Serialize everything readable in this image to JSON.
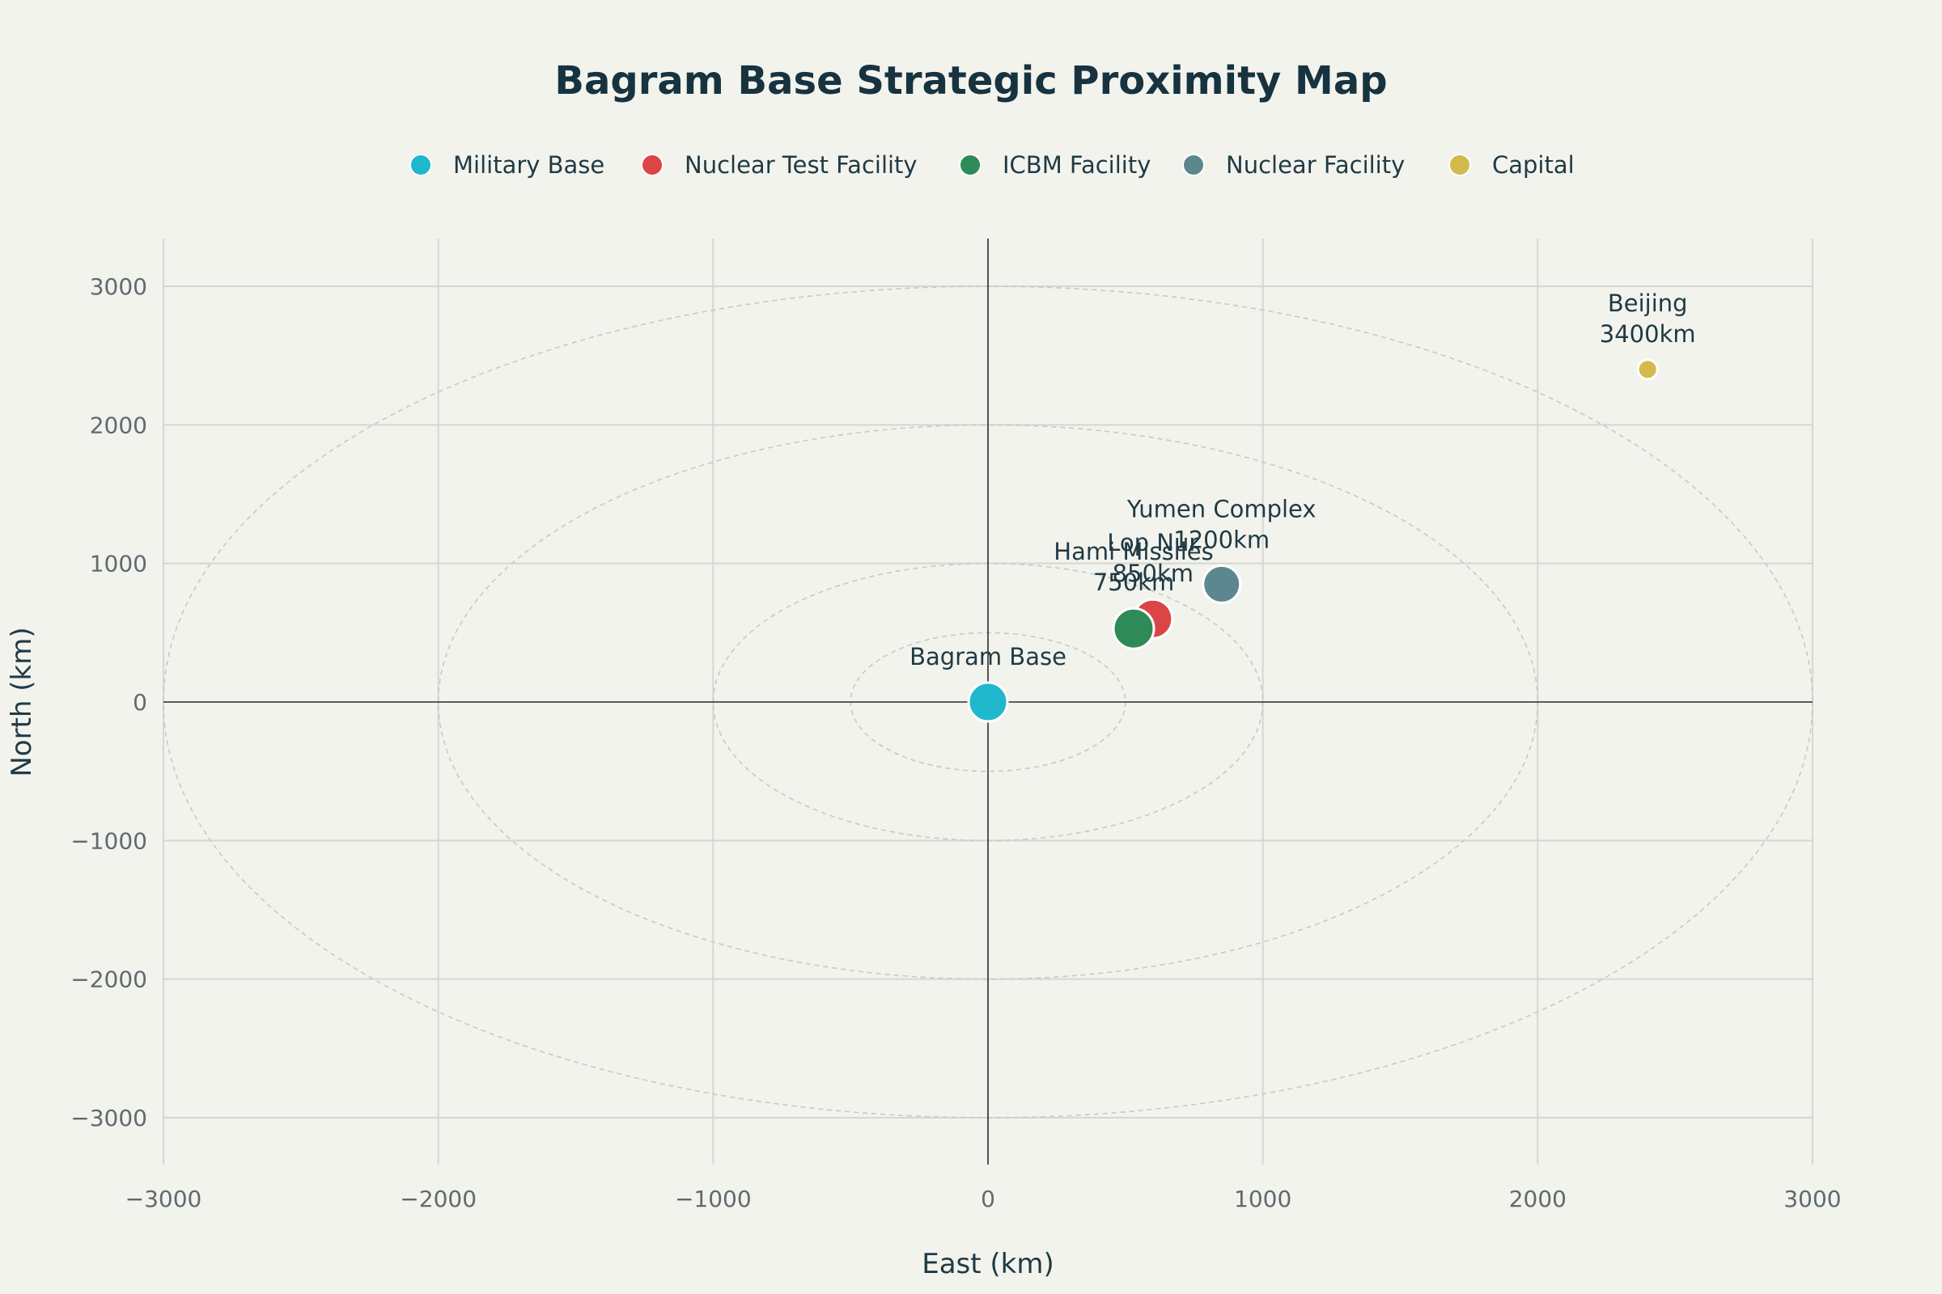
{
  "chart_data": {
    "type": "scatter",
    "title": "Bagram Base Strategic Proximity Map",
    "xlabel": "East (km)",
    "ylabel": "North (km)",
    "xlim": [
      -3000,
      3000
    ],
    "ylim": [
      -3000,
      3000
    ],
    "xticks": [
      -3000,
      -2000,
      -1000,
      0,
      1000,
      2000,
      3000
    ],
    "yticks": [
      -3000,
      -2000,
      -1000,
      0,
      1000,
      2000,
      3000
    ],
    "xtick_labels": [
      "−3000",
      "−2000",
      "−1000",
      "0",
      "1000",
      "2000",
      "3000"
    ],
    "ytick_labels": [
      "−3000",
      "−2000",
      "−1000",
      "0",
      "1000",
      "2000",
      "3000"
    ],
    "grid": true,
    "legend_position": "top-center",
    "range_rings_km": [
      500,
      1000,
      2000,
      3000
    ],
    "series": [
      {
        "name": "Military Base",
        "color": "#1fb8cd",
        "points": [
          {
            "x": 0,
            "y": 0,
            "label": [
              "Bagram Base"
            ]
          }
        ]
      },
      {
        "name": "Nuclear Test Facility",
        "color": "#db4545",
        "points": [
          {
            "x": 600,
            "y": 600,
            "label": [
              "Lop Nur",
              "850km"
            ]
          }
        ]
      },
      {
        "name": "ICBM Facility",
        "color": "#2e8b57",
        "points": [
          {
            "x": 530,
            "y": 530,
            "label": [
              "Hami Missiles",
              "750km"
            ]
          }
        ]
      },
      {
        "name": "Nuclear Facility",
        "color": "#5d878f",
        "points": [
          {
            "x": 850,
            "y": 850,
            "label": [
              "Yumen Complex",
              "1200km"
            ]
          }
        ]
      },
      {
        "name": "Capital",
        "color": "#d2ba4c",
        "points": [
          {
            "x": 2400,
            "y": 2400,
            "label": [
              "Beijing",
              "3400km"
            ]
          }
        ]
      }
    ]
  }
}
